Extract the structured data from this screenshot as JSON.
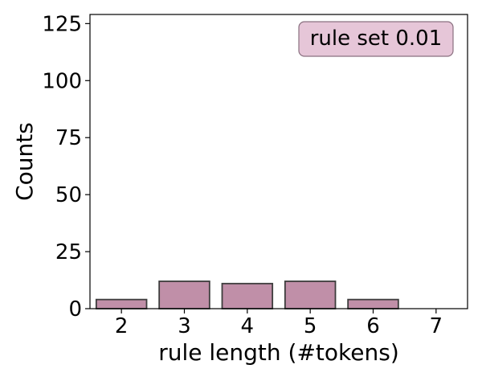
{
  "chart_data": {
    "type": "bar",
    "title": "",
    "xlabel": "rule length (#tokens)",
    "ylabel": "Counts",
    "categories": [
      2,
      3,
      4,
      5,
      6,
      7
    ],
    "values": [
      4,
      12,
      11,
      12,
      4,
      0
    ],
    "xlim": [
      1.5,
      7.5
    ],
    "ylim": [
      0,
      129
    ],
    "yticks": [
      0,
      25,
      50,
      75,
      100,
      125
    ],
    "xticks": [
      2,
      3,
      4,
      5,
      6,
      7
    ],
    "grid": false,
    "legend": {
      "text": "rule set 0.01",
      "placement": "top-right"
    },
    "colors": {
      "bar_fill": "#c08fa8",
      "bar_edge": "#3d3d3d",
      "legend_fill": "#e6c6d8",
      "legend_edge": "#8a7080"
    }
  }
}
